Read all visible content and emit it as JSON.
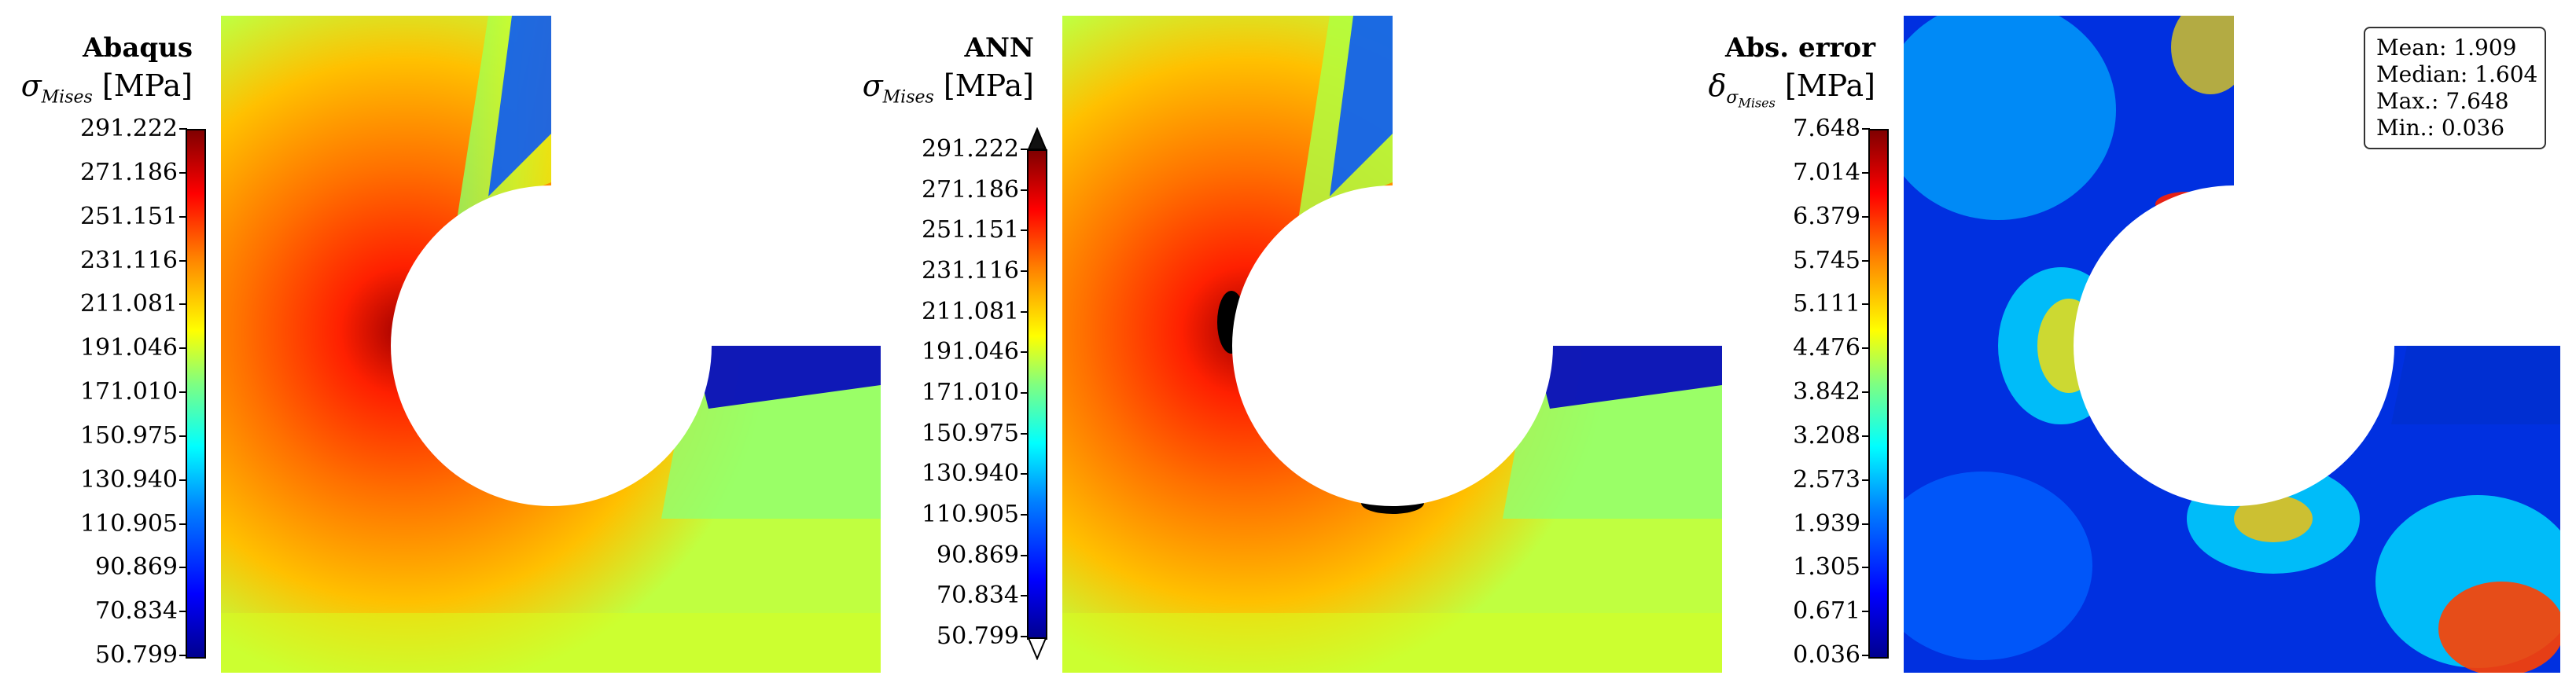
{
  "panels": [
    {
      "title": "Abaqus",
      "quantity_symbol": "σ",
      "quantity_subscript": "Mises",
      "unit": "[MPa]",
      "ticks": [
        "291.222",
        "271.186",
        "251.151",
        "231.116",
        "211.081",
        "191.046",
        "171.010",
        "150.975",
        "130.940",
        "110.905",
        "90.869",
        "70.834",
        "50.799"
      ]
    },
    {
      "title": "ANN",
      "quantity_symbol": "σ",
      "quantity_subscript": "Mises",
      "unit": "[MPa]",
      "ticks": [
        "291.222",
        "271.186",
        "251.151",
        "231.116",
        "211.081",
        "191.046",
        "171.010",
        "150.975",
        "130.940",
        "110.905",
        "90.869",
        "70.834",
        "50.799"
      ]
    },
    {
      "title": "Abs. error",
      "quantity_symbol": "δ",
      "quantity_subscript": "σ",
      "quantity_subsubscript": "Mises",
      "unit": "[MPa]",
      "ticks": [
        "7.648",
        "7.014",
        "6.379",
        "5.745",
        "5.111",
        "4.476",
        "3.842",
        "3.208",
        "2.573",
        "1.939",
        "1.305",
        "0.671",
        "0.036"
      ]
    }
  ],
  "stats": {
    "mean": "Mean: 1.909",
    "median": "Median: 1.604",
    "max": "Max.: 7.648",
    "min": "Min.: 0.036"
  },
  "colors": {
    "jet_low": "#00008f",
    "jet_mid": "#80ff80",
    "jet_high": "#800000"
  }
}
